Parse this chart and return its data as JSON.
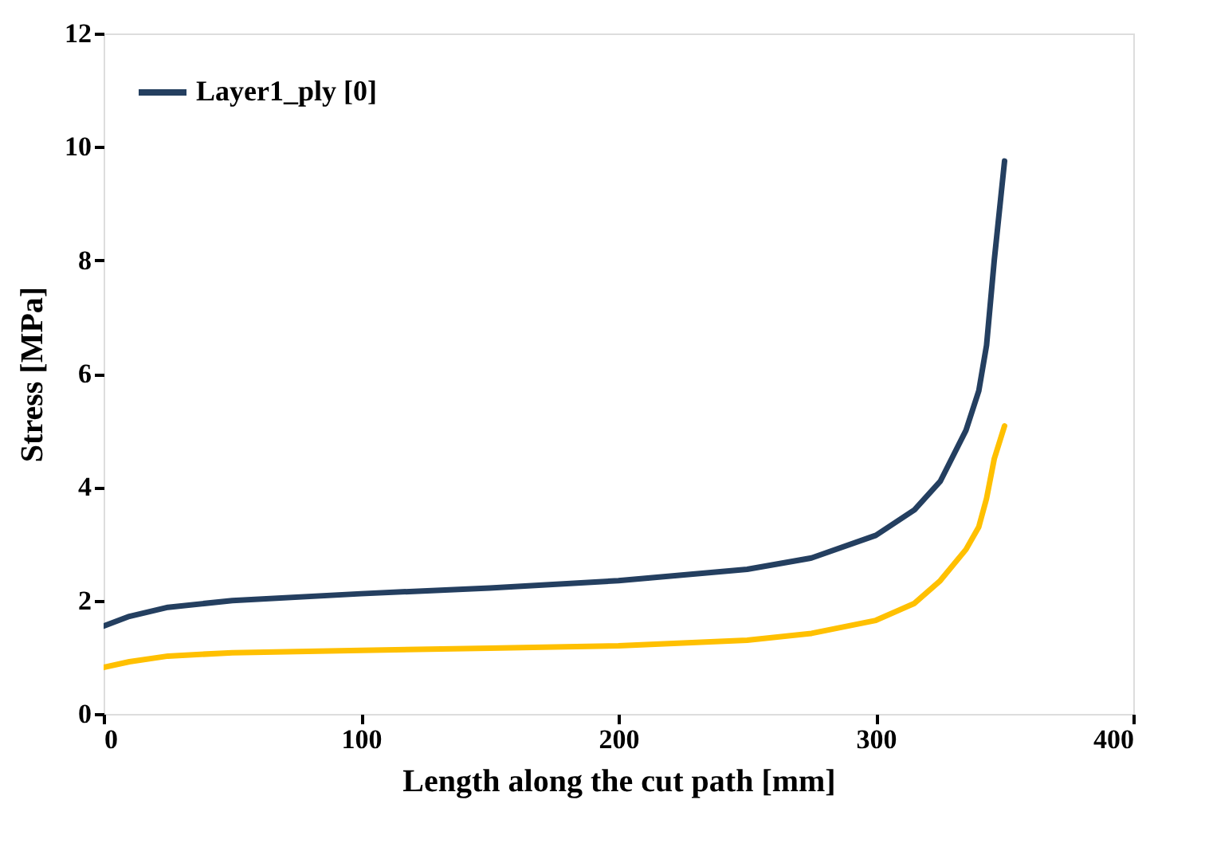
{
  "chart_data": {
    "type": "line",
    "xlabel": "Length along the cut path [mm]",
    "ylabel": "Stress [MPa]",
    "xlim": [
      0,
      400
    ],
    "xticks": [
      0,
      100,
      200,
      300,
      400
    ],
    "ylim": [
      0,
      12
    ],
    "yticks": [
      0,
      2,
      4,
      6,
      8,
      10,
      12
    ],
    "grid": false,
    "legend": "top left",
    "marker": "none",
    "line_style": "solid",
    "x": [
      0,
      10,
      25,
      50,
      100,
      150,
      200,
      250,
      275,
      300,
      315,
      325,
      335,
      340,
      343,
      346,
      350
    ],
    "series": [
      {
        "name": "Layer1_ply [0]",
        "color": "#243f60",
        "values": [
          1.55,
          1.72,
          1.88,
          2.0,
          2.12,
          2.22,
          2.35,
          2.55,
          2.75,
          3.15,
          3.6,
          4.1,
          5.0,
          5.7,
          6.5,
          8.0,
          9.75
        ]
      },
      {
        "color": "#ffc000",
        "values": [
          0.82,
          0.92,
          1.02,
          1.08,
          1.12,
          1.16,
          1.2,
          1.3,
          1.42,
          1.65,
          1.95,
          2.35,
          2.9,
          3.3,
          3.8,
          4.5,
          5.08
        ]
      }
    ]
  }
}
